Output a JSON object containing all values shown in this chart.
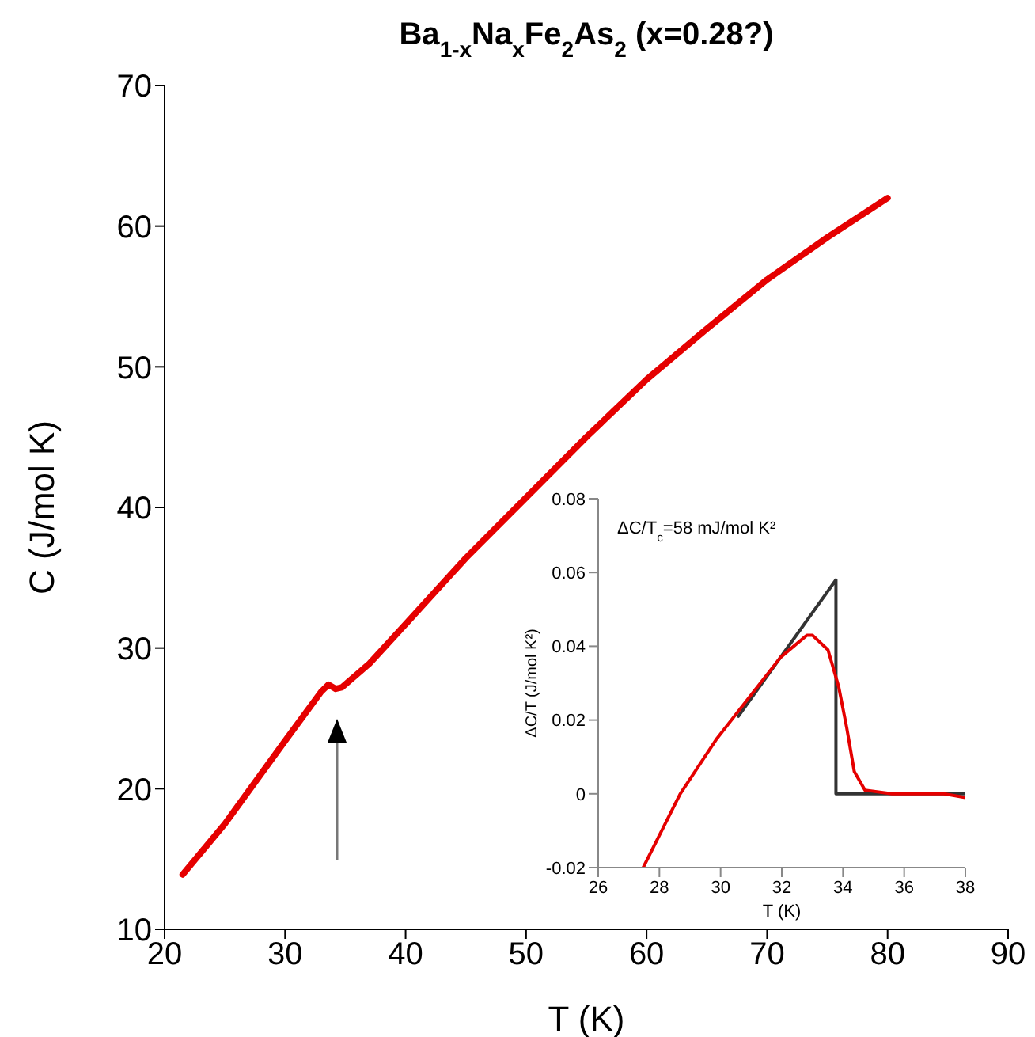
{
  "chart_data": [
    {
      "type": "line",
      "title": "Ba$_{1-x}$Na$_{x}$Fe$_{2}$As$_{2}$ (x=0.28?)",
      "xlabel": "T (K)",
      "ylabel": "C (J/mol K)",
      "xlim": [
        20,
        90
      ],
      "xticks": [
        20,
        30,
        40,
        50,
        60,
        70,
        80,
        90
      ],
      "ylim": [
        10,
        70
      ],
      "yticks": [
        10,
        20,
        30,
        40,
        50,
        60,
        70
      ],
      "marker": "none",
      "series": [
        {
          "color": "#e50000",
          "x": [
            21.5,
            25,
            30,
            33,
            33.6,
            34.2,
            34.7,
            37,
            40,
            45,
            50,
            55,
            60,
            65,
            70,
            75,
            80
          ],
          "values": [
            13.9,
            17.5,
            23.4,
            26.9,
            27.4,
            27.1,
            27.2,
            28.9,
            31.7,
            36.4,
            40.7,
            45.0,
            49.1,
            52.7,
            56.2,
            59.2,
            62.0
          ]
        }
      ]
    },
    {
      "type": "line",
      "xlabel": "T (K)",
      "ylabel": "ΔC/T (J/mol K²)",
      "xlim": [
        26,
        38
      ],
      "xticks": [
        26,
        28,
        30,
        32,
        34,
        36,
        38
      ],
      "ylim": [
        -0.02,
        0.08
      ],
      "yticks": [
        -0.02,
        0,
        0.02,
        0.04,
        0.06,
        0.08
      ],
      "marker": "none",
      "annotations": [
        "ΔC/T$_{c}$=58 mJ/mol K²"
      ],
      "series": [
        {
          "color": "#333333",
          "x": [
            30.58,
            33.77,
            33.77,
            38
          ],
          "values": [
            0.021,
            0.058,
            0,
            0
          ]
        },
        {
          "color": "#e50000",
          "x": [
            27.47,
            28.68,
            29.88,
            30.92,
            31.96,
            32.82,
            33.0,
            33.51,
            33.86,
            34.12,
            34.37,
            34.72,
            35.6,
            36.6,
            37.3,
            38
          ],
          "values": [
            -0.02,
            0,
            0.015,
            0.026,
            0.037,
            0.043,
            0.043,
            0.039,
            0.029,
            0.018,
            0.006,
            0.001,
            0,
            0,
            0,
            -0.001
          ]
        }
      ]
    }
  ]
}
